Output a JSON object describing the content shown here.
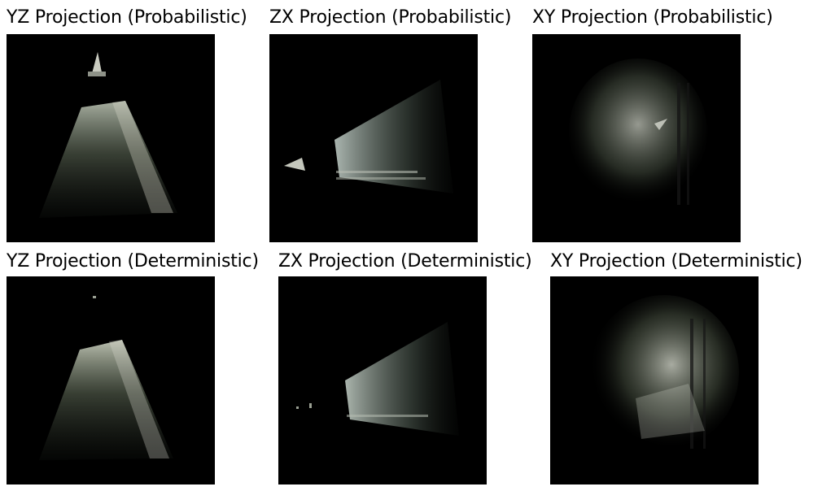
{
  "panels": [
    {
      "title": "YZ Projection (Probabilistic)"
    },
    {
      "title": "ZX Projection (Probabilistic)"
    },
    {
      "title": "XY Projection (Probabilistic)"
    },
    {
      "title": "YZ Projection (Deterministic)"
    },
    {
      "title": "ZX Projection (Deterministic)"
    },
    {
      "title": "XY Projection (Deterministic)"
    }
  ]
}
